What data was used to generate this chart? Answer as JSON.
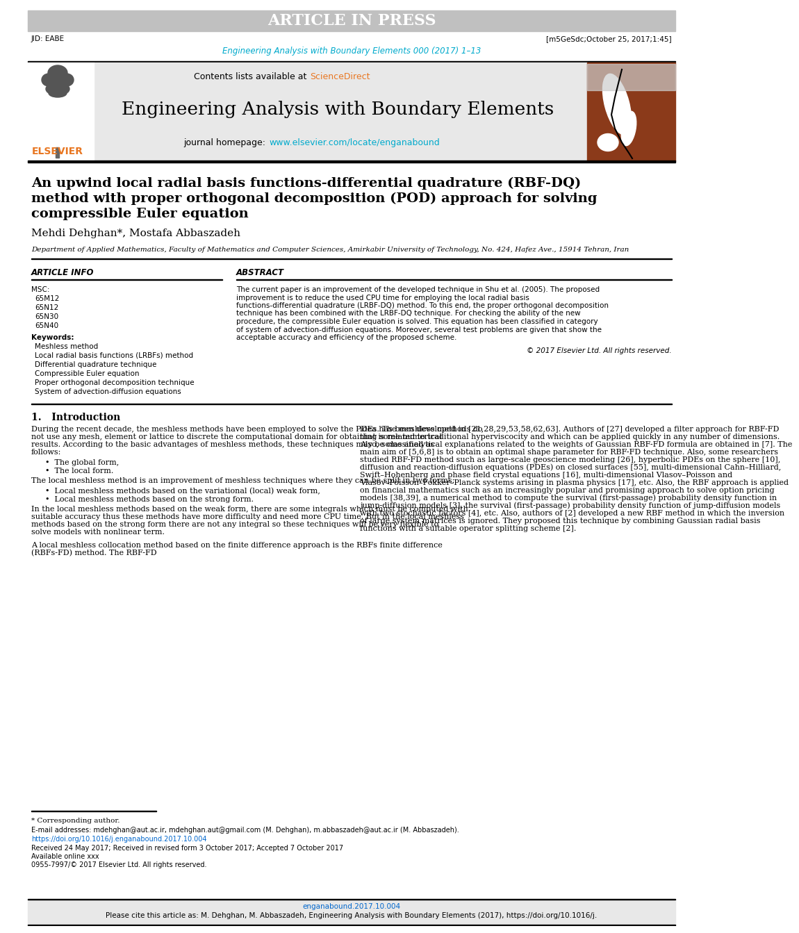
{
  "article_in_press_text": "ARTICLE IN PRESS",
  "article_in_press_bg": "#b0b0b0",
  "article_in_press_color": "#ffffff",
  "jid_text": "JID: EABE",
  "ref_text": "[m5GeSdc;October 25, 2017;1:45]",
  "journal_citation": "Engineering Analysis with Boundary Elements 000 (2017) 1–13",
  "journal_citation_color": "#00aacc",
  "contents_text": "Contents lists available at ",
  "sciencedirect_text": "ScienceDirect",
  "sciencedirect_color": "#e87722",
  "journal_title": "Engineering Analysis with Boundary Elements",
  "journal_homepage_label": "journal homepage: ",
  "journal_homepage_url": "www.elsevier.com/locate/enganabound",
  "journal_homepage_color": "#00aacc",
  "elsevier_color": "#e87722",
  "elsevier_text": "ELSEVIER",
  "paper_title_line1": "An upwind local radial basis functions-differential quadrature (RBF-DQ)",
  "paper_title_line2": "method with proper orthogonal decomposition (POD) approach for solving",
  "paper_title_line3": "compressible Euler equation",
  "authors": "Mehdi Dehghan*, Mostafa Abbaszadeh",
  "affiliation": "Department of Applied Mathematics, Faculty of Mathematics and Computer Sciences, Amirkabir University of Technology, No. 424, Hafez Ave., 15914 Tehran, Iran",
  "article_info_title": "ARTICLE INFO",
  "msc_title": "MSC:",
  "msc_codes": [
    "65M12",
    "65N12",
    "65N30",
    "65N40"
  ],
  "keywords_title": "Keywords:",
  "keywords": [
    "Meshless method",
    "Local radial basis functions (LRBFs) method",
    "Differential quadrature technique",
    "Compressible Euler equation",
    "Proper orthogonal decomposition technique",
    "System of advection-diffusion equations"
  ],
  "abstract_title": "ABSTRACT",
  "abstract_text": "The current paper is an improvement of the developed technique in Shu et al. (2005). The proposed improvement is to reduce the used CPU time for employing the local radial basis functions-differential quadrature (LRBF-DQ) method. To this end, the proper orthogonal decomposition technique has been combined with the LRBF-DQ technique. For checking the ability of the new procedure, the compressible Euler equation is solved. This equation has been classified in category of system of advection-diffusion equations. Moreover, several test problems are given that show the acceptable accuracy and efficiency of the proposed scheme.",
  "copyright_text": "© 2017 Elsevier Ltd. All rights reserved.",
  "section1_title": "1.   Introduction",
  "intro_para1": "During the recent decade, the meshless methods have been employed to solve the PDEs. The meshless methods do not use any mesh, element or lattice to discrete the computational domain for obtaining some numerical results. According to the basic advantages of meshless methods, these techniques may be classified as follows:",
  "bullet1": "•  The global form,",
  "bullet2": "•  The local form.",
  "intro_para2": "The local meshless method is an improvement of meshless techniques where they can be split in two forms:",
  "bullet3": "•  Local meshless methods based on the variational (local) weak form,",
  "bullet4": "•  Local meshless methods based on the strong form.",
  "intro_para3": "In the local meshless methods based on the weak form, there are some integrals which must be computed with suitable accuracy thus these methods have more difficulty and need more CPU time. But in the local meshless methods based on the strong form there are not any integral so these techniques will be very flexible to solve models with nonlinear term.",
  "intro_para4": "A local meshless collocation method based on the finite difference approach is the RBFs finite difference (RBFs-FD) method. The RBF-FD",
  "right_col_para1": "idea has been developed in [21,28,29,53,58,62,63]. Authors of [27] developed a filter approach for RBF-FD that is related to traditional hyperviscocity and which can be applied quickly in any number of dimensions. Also, some analytical explanations related to the weights of Gaussian RBF-FD formula are obtained in [7]. The main aim of [5,6,8] is to obtain an optimal shape parameter for RBF-FD technique. Also, some researchers studied RBF-FD method such as large-scale geoscience modeling [26], hyperbolic PDEs on the sphere [10], diffusion and reaction-diffusion equations (PDEs) on closed surfaces [55], multi-dimensional Cahn–Hilliard, Swift–Hohenberg and phase field crystal equations [16], multi-dimensional Vlasov–Poisson and Vlasov–Poisson–Fokker–Planck systems arising in plasma physics [17], etc. Also, the RBF approach is applied on financial mathematics such as an increasingly popular and promising approach to solve option pricing models [38,39], a numerical method to compute the survival (first-passage) probability density function in jump-diffusion models [3], the survival (first-passage) probability density function of jump-diffusion models with two stochastic factors [4], etc. Also, authors of [2] developed a new RBF method in which the inversion of large system matrices is ignored. They proposed this technique by combining Gaussian radial basis functions with a suitable operator splitting scheme [2].",
  "footnote_star": "* Corresponding author.",
  "footnote_email": "E-mail addresses: mdehghan@aut.ac.ir, mdehghan.aut@gmail.com (M. Dehghan), m.abbaszadeh@aut.ac.ir (M. Abbaszadeh).",
  "doi_url": "https://doi.org/10.1016/j.enganabound.2017.10.004",
  "received_text": "Received 24 May 2017; Received in revised form 3 October 2017; Accepted 7 October 2017",
  "available_text": "Available online xxx",
  "issn_text": "0955-7997/© 2017 Elsevier Ltd. All rights reserved.",
  "cite_text": "Please cite this article as: M. Dehghan, M. Abbaszadeh, Engineering Analysis with Boundary Elements (2017), https://doi.org/10.1016/j.",
  "cite_text2": "enganabound.2017.10.004",
  "cite_bg": "#e8e8e8",
  "page_bg": "#ffffff",
  "text_color": "#000000",
  "header_bg": "#c0c0c0"
}
